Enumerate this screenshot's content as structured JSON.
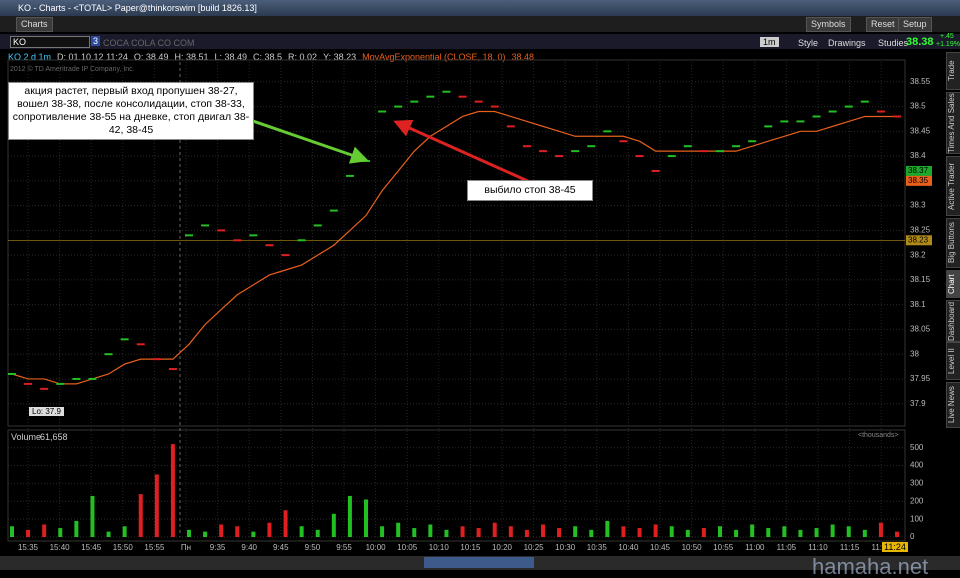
{
  "window": {
    "title": "KO - Charts - <TOTAL> Paper@thinkorswim [build 1826.13]",
    "tab": "Charts",
    "toolbar": [
      "Symbols",
      "Reset",
      "Setup"
    ],
    "symbol": "KO",
    "symbol_link": "3",
    "company": "COCA COLA CO COM",
    "period": "1m",
    "tools": [
      "Style",
      "Drawings",
      "Studies"
    ],
    "last": "38.38",
    "change": "+.45",
    "change_pct": "+1.19%",
    "info": [
      "KO 2 d 1m",
      "D: 01.10.12 11:24",
      "O: 38.49",
      "H: 38.51",
      "L: 38.49",
      "C: 38.5",
      "R: 0.02",
      "Y: 38.23"
    ],
    "copyright": "2012 © TD Ameritrade IP Company, Inc.",
    "side_tabs": [
      "Trade",
      "Times And Sales",
      "Active Trader",
      "Big Buttons",
      "Chart",
      "Dashboard",
      "Level II",
      "Live News"
    ],
    "note_left": "акция растет, первый вход пропушен 38-27, вошел 38-38, после консолидации, стоп 38-33, сопротивление 38-55 на дневке, стоп двигал 38-42, 38-45",
    "note_right": "выбило стоп 38-45",
    "low_label": "Lo: 37.9",
    "volume_label": "Volume",
    "volume_total": "61,658",
    "volume_units": "<thousands>",
    "time_now": "11:24",
    "watermark": "hamaha.net"
  },
  "chart_data": [
    {
      "type": "price",
      "ylim": [
        37.855,
        38.59
      ],
      "yticks": [
        37.9,
        37.95,
        38,
        38.05,
        38.1,
        38.15,
        38.2,
        38.25,
        38.3,
        38.35,
        38.4,
        38.45,
        38.5,
        38.55
      ],
      "grid": true,
      "up_color": "#22c022",
      "down_color": "#e02020",
      "series": [
        {
          "values": [
            37.96,
            37.94,
            37.93,
            37.94,
            37.95,
            37.95,
            38.0,
            38.03,
            38.02,
            37.99,
            37.97,
            38.24,
            38.26,
            38.25,
            38.23,
            38.24,
            38.22,
            38.2,
            38.23,
            38.26,
            38.29,
            38.36,
            38.39,
            38.49,
            38.5,
            38.51,
            38.52,
            38.53,
            38.52,
            38.51,
            38.5,
            38.46,
            38.42,
            38.41,
            38.4,
            38.41,
            38.42,
            38.45,
            38.43,
            38.4,
            38.37,
            38.4,
            38.42,
            38.41,
            38.41,
            38.42,
            38.43,
            38.46,
            38.47,
            38.47,
            38.48,
            38.49,
            38.5,
            38.51,
            38.49,
            38.48
          ]
        },
        {
          "name": "MovAvgExponential (CLOSE, 18, 0)",
          "color": "#e8601c",
          "values": [
            37.96,
            37.95,
            37.95,
            37.94,
            37.94,
            37.95,
            37.96,
            37.98,
            37.99,
            37.99,
            37.99,
            38.02,
            38.06,
            38.09,
            38.12,
            38.14,
            38.16,
            38.17,
            38.18,
            38.2,
            38.22,
            38.25,
            38.28,
            38.33,
            38.37,
            38.41,
            38.44,
            38.46,
            38.48,
            38.49,
            38.49,
            38.48,
            38.47,
            38.46,
            38.45,
            38.44,
            38.44,
            38.44,
            38.44,
            38.43,
            38.41,
            38.41,
            38.41,
            38.41,
            38.41,
            38.41,
            38.42,
            38.43,
            38.44,
            38.45,
            38.45,
            38.46,
            38.47,
            38.48,
            38.48,
            38.48
          ],
          "last": 38.48
        }
      ],
      "price_labels": [
        {
          "value": 38.37,
          "color": "#1ca82c"
        },
        {
          "value": 38.35,
          "color": "#e8601c"
        },
        {
          "value": 38.23,
          "color": "#b08a18"
        }
      ]
    },
    {
      "type": "volume",
      "ylim": [
        0,
        560
      ],
      "yticks": [
        0,
        100,
        200,
        300,
        400,
        500
      ],
      "values": [
        60,
        40,
        70,
        50,
        90,
        230,
        30,
        60,
        240,
        350,
        520,
        40,
        30,
        70,
        60,
        30,
        80,
        150,
        60,
        40,
        130,
        230,
        210,
        60,
        80,
        50,
        70,
        40,
        60,
        50,
        80,
        60,
        40,
        70,
        50,
        60,
        40,
        90,
        60,
        50,
        70,
        60,
        40,
        50,
        60,
        40,
        70,
        50,
        60,
        40,
        50,
        70,
        60,
        40,
        80,
        30
      ],
      "xticks": [
        "15:35",
        "15:40",
        "15:45",
        "15:50",
        "15:55",
        "Пн",
        "9:35",
        "9:40",
        "9:45",
        "9:50",
        "9:55",
        "10:00",
        "10:05",
        "10:10",
        "10:15",
        "10:20",
        "10:25",
        "10:30",
        "10:35",
        "10:40",
        "10:45",
        "10:50",
        "10:55",
        "11:00",
        "11:05",
        "11:10",
        "11:15",
        "11:20"
      ]
    }
  ]
}
